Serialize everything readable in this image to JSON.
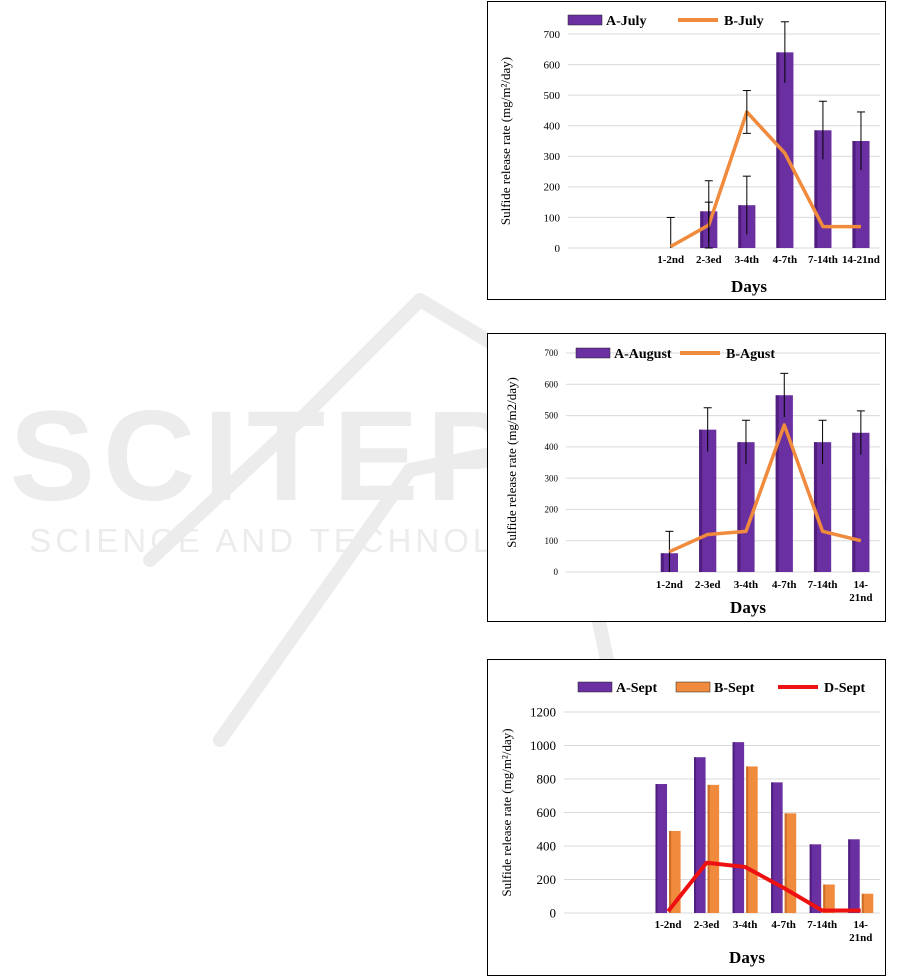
{
  "watermark": {
    "title": "SCITEPRESS",
    "subtitle": "SCIENCE AND TECHNOLOGY PUBLICATIONS"
  },
  "colors": {
    "bar": "#6a2fa0",
    "bar_dark": "#3d1468",
    "line_orange": "#f08a3c",
    "bar_orange": "#f08a3c",
    "line_red": "#ee1111",
    "grid": "#d9d9d9"
  },
  "chart_data": [
    {
      "id": "chart1",
      "type": "bar",
      "xlabel": "Days",
      "ylabel": "Sulfide release rate (mg/m²/day)",
      "ylim": [
        0,
        700
      ],
      "yticks": [
        0,
        100,
        200,
        300,
        400,
        500,
        600,
        700
      ],
      "categories": [
        "1-2nd",
        "2-3ed",
        "3-4th",
        "4-7th",
        "7-14th",
        "14-21nd"
      ],
      "bar_series": [
        {
          "name": "A-July",
          "values": [
            0,
            120,
            140,
            640,
            385,
            350
          ],
          "err": [
            100,
            100,
            95,
            100,
            95,
            95
          ]
        }
      ],
      "line_series": [
        {
          "name": "B-July",
          "values": [
            5,
            75,
            445,
            310,
            70,
            70
          ],
          "err": [
            null,
            75,
            70,
            null,
            null,
            null
          ]
        }
      ],
      "legend": "top"
    },
    {
      "id": "chart2",
      "type": "bar",
      "xlabel": "Days",
      "ylabel": "Sulfide release rate (mg/m2/day)",
      "ylim": [
        0,
        700
      ],
      "yticks": [
        0,
        100,
        200,
        300,
        400,
        500,
        600,
        700
      ],
      "categories": [
        "1-2nd",
        "2-3ed",
        "3-4th",
        "4-7th",
        "7-14th",
        "14-21nd"
      ],
      "bar_series": [
        {
          "name": "A-August",
          "values": [
            60,
            455,
            415,
            565,
            415,
            445
          ],
          "err": [
            70,
            70,
            70,
            70,
            70,
            70
          ]
        }
      ],
      "line_series": [
        {
          "name": "B-Agust",
          "values": [
            65,
            120,
            130,
            470,
            130,
            100
          ],
          "err": [
            null,
            null,
            null,
            null,
            null,
            null
          ]
        }
      ],
      "legend": "top"
    },
    {
      "id": "chart3",
      "type": "bar",
      "xlabel": "Days",
      "ylabel": "Sulfide release rate (mg/m²/day)",
      "ylim": [
        0,
        1200
      ],
      "yticks": [
        0,
        200,
        400,
        600,
        800,
        1000,
        1200
      ],
      "categories": [
        "1-2nd",
        "2-3ed",
        "3-4th",
        "4-7th",
        "7-14th",
        "14-21nd"
      ],
      "bar_series": [
        {
          "name": "A-Sept",
          "values": [
            770,
            930,
            1020,
            780,
            410,
            440
          ],
          "err": null
        },
        {
          "name": "B-Sept",
          "values": [
            490,
            765,
            875,
            595,
            170,
            115
          ],
          "err": null
        }
      ],
      "line_series": [
        {
          "name": "D-Sept",
          "values": [
            10,
            300,
            275,
            150,
            15,
            15
          ],
          "err": null
        }
      ],
      "legend": "top"
    }
  ]
}
